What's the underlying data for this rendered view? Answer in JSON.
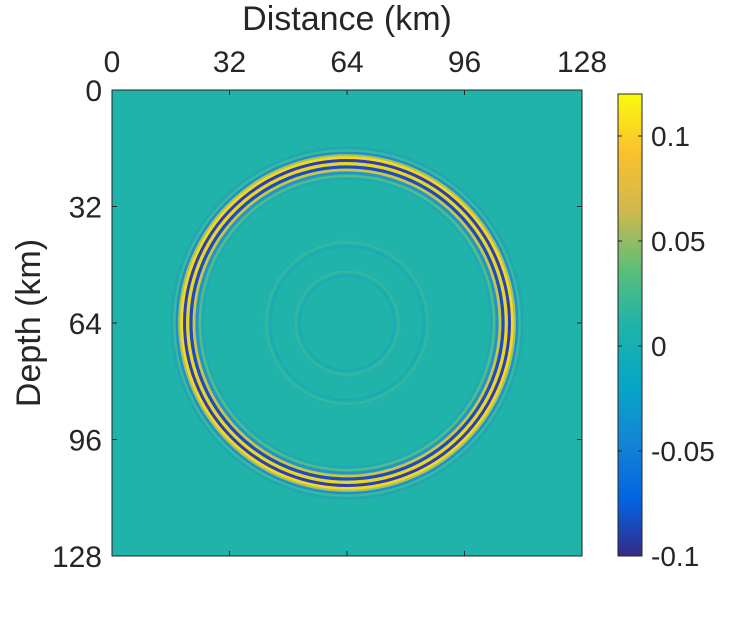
{
  "chart_data": {
    "type": "heatmap",
    "title": "",
    "xlabel": "Distance (km)",
    "ylabel": "Depth (km)",
    "x_axis_position": "top",
    "y_direction": "reversed",
    "xlim": [
      0,
      128
    ],
    "ylim": [
      0,
      128
    ],
    "xticks": [
      0,
      32,
      64,
      96,
      128
    ],
    "yticks": [
      0,
      32,
      64,
      96,
      128
    ],
    "xtick_labels": [
      "0",
      "32",
      "64",
      "96",
      "128"
    ],
    "ytick_labels": [
      "0",
      "32",
      "64",
      "96",
      "128"
    ],
    "colormap": "parula",
    "colorbar": {
      "clim": [
        -0.1,
        0.12
      ],
      "ticks": [
        -0.1,
        -0.05,
        0,
        0.05,
        0.1
      ],
      "tick_labels": [
        "-0.1",
        "-0.05",
        "0",
        "0.05",
        "0.1"
      ],
      "position": "right"
    },
    "field": {
      "description_type": "circular wavefront rings",
      "center_km": [
        64,
        64
      ],
      "rings": [
        {
          "radius_km": 44,
          "amplitude": 0.12
        },
        {
          "radius_km": 22,
          "amplitude": 0.006
        },
        {
          "radius_km": 14,
          "amplitude": 0.004
        }
      ],
      "background_value": 0
    },
    "grid": false,
    "legend": "none"
  }
}
